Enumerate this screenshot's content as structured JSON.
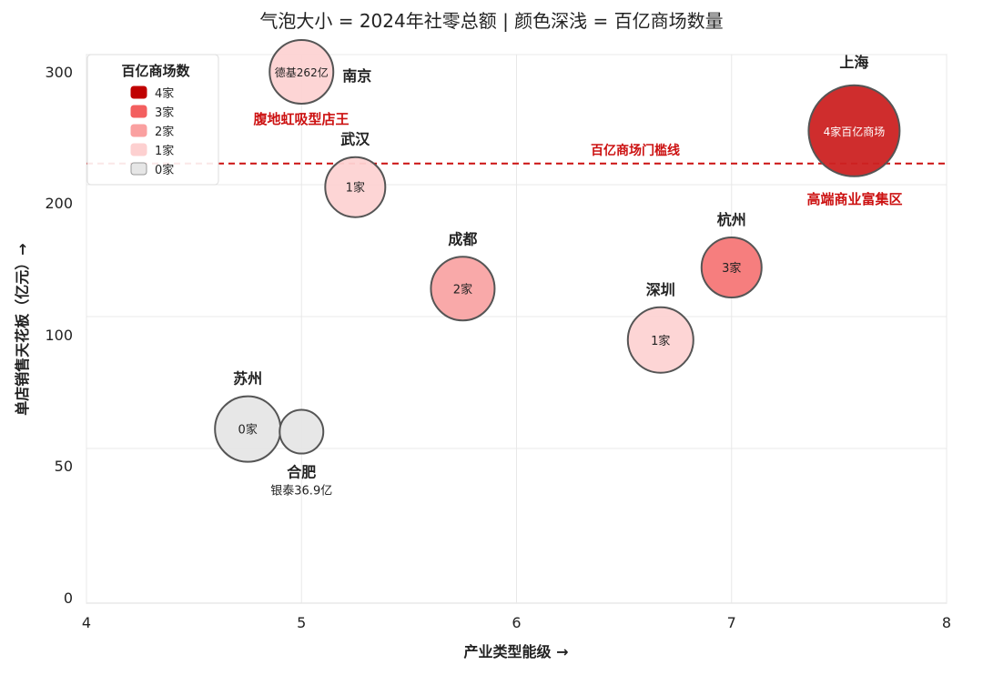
{
  "chart_data": {
    "type": "scatter",
    "title": "气泡大小 = 2024年社零总额 | 颜色深浅 = 百亿商场数量",
    "xlabel": "产业类型能级 →",
    "ylabel": "单店销售天花板（亿元）→",
    "xlim": [
      4,
      8
    ],
    "x_ticks": [
      "4",
      "5",
      "6",
      "7",
      "8"
    ],
    "y_ticks": [
      {
        "label": "0",
        "value": 0
      },
      {
        "label": "50",
        "value": 50
      },
      {
        "label": "100",
        "value": 100
      },
      {
        "label": "200",
        "value": 200
      },
      {
        "label": "300",
        "value": 300
      }
    ],
    "grid": true,
    "legend": {
      "title": "百亿商场数",
      "position": "top-left",
      "items": [
        {
          "label": "4家",
          "color": "#C00000"
        },
        {
          "label": "3家",
          "color": "#F35F5F"
        },
        {
          "label": "2家",
          "color": "#FAA0A0"
        },
        {
          "label": "1家",
          "color": "#FDD0D0"
        },
        {
          "label": "0家",
          "color": "#E6E6E6"
        }
      ]
    },
    "points": [
      {
        "city": "上海",
        "x": 7.57,
        "y": 255,
        "malls": 4,
        "inner": "4家百亿商场",
        "color": "#CC2222",
        "inner_color": "#ffffff"
      },
      {
        "city": "南京",
        "x": 5.0,
        "y": 300,
        "malls": 1,
        "inner": "德基262亿",
        "color": "#FDD3D3",
        "inner_color": "#222222"
      },
      {
        "city": "武汉",
        "x": 5.25,
        "y": 212,
        "malls": 1,
        "inner": "1家",
        "color": "#FDD3D3",
        "inner_color": "#222222"
      },
      {
        "city": "成都",
        "x": 5.75,
        "y": 135,
        "malls": 2,
        "inner": "2家",
        "color": "#F9A4A4",
        "inner_color": "#222222"
      },
      {
        "city": "杭州",
        "x": 7.0,
        "y": 151,
        "malls": 3,
        "inner": "3家",
        "color": "#F67777",
        "inner_color": "#222222"
      },
      {
        "city": "深圳",
        "x": 6.67,
        "y": 98,
        "malls": 1,
        "inner": "1家",
        "color": "#FDD3D3",
        "inner_color": "#222222"
      },
      {
        "city": "苏州",
        "x": 4.75,
        "y": 64,
        "malls": 0,
        "inner": "0家",
        "color": "#E6E6E6",
        "inner_color": "#222222"
      },
      {
        "city": "合肥",
        "x": 5.0,
        "y": 63,
        "malls": 0,
        "inner": "",
        "color": "#E6E6E6",
        "inner_color": "#222222",
        "sub": "银泰36.9亿"
      }
    ],
    "threshold": {
      "y": 230,
      "label": "百亿商场门槛线",
      "color": "#CC1111"
    },
    "annotations": [
      {
        "text": "腹地虹吸型店王",
        "color": "#CC1111"
      },
      {
        "text": "高端商业富集区",
        "color": "#CC1111"
      }
    ]
  }
}
